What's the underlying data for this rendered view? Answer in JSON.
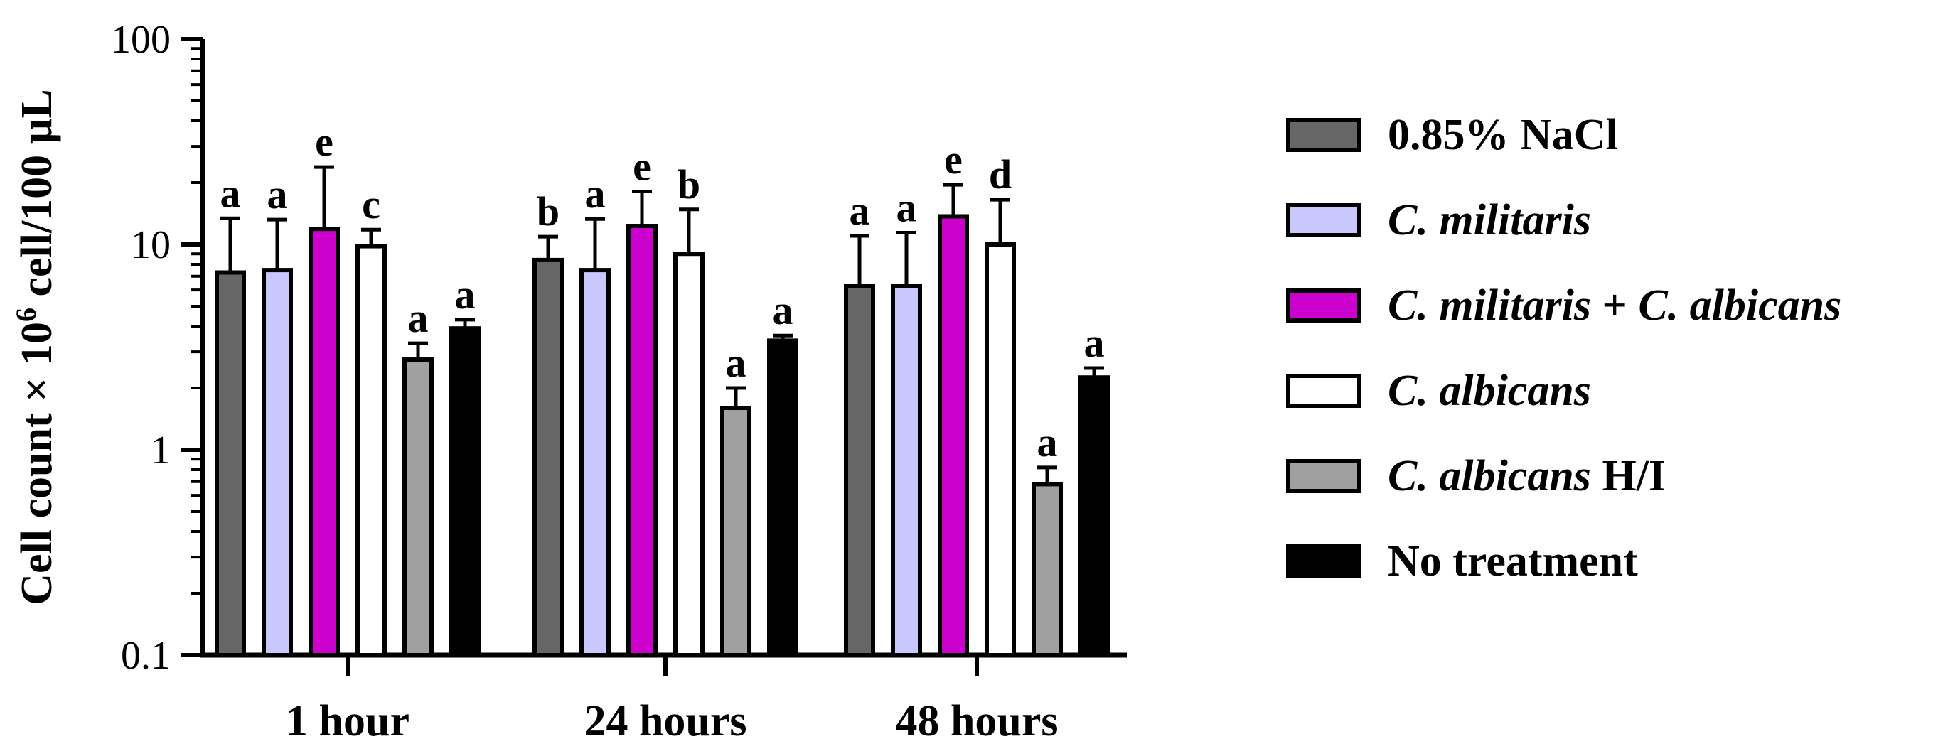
{
  "chart_data": {
    "type": "bar",
    "yscale": "log",
    "ylim": [
      0.1,
      100
    ],
    "yticks": [
      "0.1",
      "1",
      "10",
      "100"
    ],
    "ylabel": {
      "prefix": "Cell count × 10",
      "superscript": "6",
      "suffix": " cell/100 µL"
    },
    "xlabel": "",
    "categories": [
      "1 hour",
      "24 hours",
      "48 hours"
    ],
    "series": [
      {
        "name": "0.85% NaCl",
        "name_parts": [
          {
            "text": "0.85% NaCl",
            "italic": false
          }
        ],
        "color": "#666666",
        "values": [
          7.3,
          8.4,
          6.3
        ],
        "errors": [
          13.4,
          10.9,
          11.0
        ],
        "letters": [
          "a",
          "b",
          "a"
        ]
      },
      {
        "name": "C. militaris",
        "name_parts": [
          {
            "text": "C. militaris",
            "italic": true
          }
        ],
        "color": "#c8c8ff",
        "values": [
          7.5,
          7.5,
          6.3
        ],
        "errors": [
          13.2,
          13.3,
          11.4
        ],
        "letters": [
          "a",
          "a",
          "a"
        ]
      },
      {
        "name": "C. militaris + C. albicans",
        "name_parts": [
          {
            "text": "C. militaris",
            "italic": true
          },
          {
            "text": " + ",
            "italic": false
          },
          {
            "text": "C. albicans",
            "italic": true
          }
        ],
        "color": "#cc00cc",
        "values": [
          11.9,
          12.3,
          13.7
        ],
        "errors": [
          23.8,
          18.1,
          19.5
        ],
        "letters": [
          "e",
          "e",
          "e"
        ]
      },
      {
        "name": "C. albicans",
        "name_parts": [
          {
            "text": "C. albicans",
            "italic": true
          }
        ],
        "color": "#ffffff",
        "values": [
          9.8,
          9.0,
          10.0
        ],
        "errors": [
          11.8,
          14.8,
          16.5
        ],
        "letters": [
          "c",
          "b",
          "d"
        ]
      },
      {
        "name": "C. albicans H/I",
        "name_parts": [
          {
            "text": "C. albicans",
            "italic": true
          },
          {
            "text": " H/I",
            "italic": false
          }
        ],
        "color": "#a0a0a0",
        "values": [
          2.75,
          1.6,
          0.68
        ],
        "errors": [
          3.3,
          2.0,
          0.82
        ],
        "letters": [
          "a",
          "a",
          "a"
        ]
      },
      {
        "name": "No treatment",
        "name_parts": [
          {
            "text": "No treatment",
            "italic": false
          }
        ],
        "color": "#000000",
        "values": [
          3.9,
          3.4,
          2.25
        ],
        "errors": [
          4.3,
          3.6,
          2.5
        ],
        "letters": [
          "a",
          "a",
          "a"
        ]
      }
    ],
    "legend_position": "right",
    "grid": false
  }
}
